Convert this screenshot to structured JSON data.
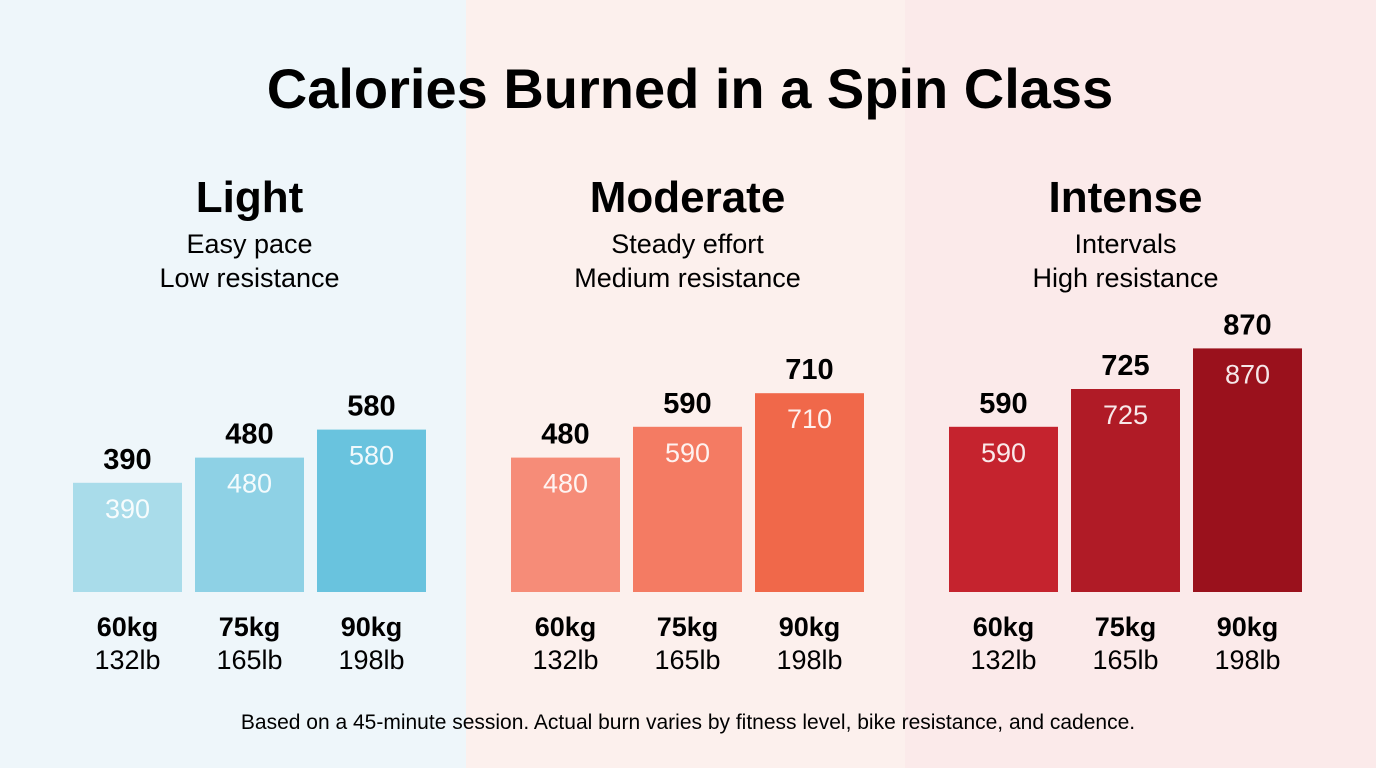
{
  "chart_data": {
    "type": "bar",
    "title": "Calories Burned in a Spin Class",
    "footnote": "Based on a 45-minute session. Actual burn varies by fitness level, bike resistance, and cadence.",
    "ylim": [
      0,
      1000
    ],
    "grid": false,
    "categories": [
      {
        "kg": "60kg",
        "lb": "132lb"
      },
      {
        "kg": "75kg",
        "lb": "165lb"
      },
      {
        "kg": "90kg",
        "lb": "198lb"
      }
    ],
    "groups": [
      {
        "name": "Light",
        "subtitle": [
          "Easy pace",
          "Low resistance"
        ],
        "values": [
          390,
          480,
          580
        ],
        "colors": [
          "#a9dcea",
          "#8ed1e5",
          "#69c3de"
        ],
        "panel": "#eef6fa"
      },
      {
        "name": "Moderate",
        "subtitle": [
          "Steady effort",
          "Medium resistance"
        ],
        "values": [
          480,
          590,
          710
        ],
        "colors": [
          "#f68c78",
          "#f47b63",
          "#f0684a"
        ],
        "panel": "#fcf0ed"
      },
      {
        "name": "Intense",
        "subtitle": [
          "Intervals",
          "High resistance"
        ],
        "values": [
          590,
          725,
          870
        ],
        "colors": [
          "#c5232e",
          "#b01b26",
          "#9a111c"
        ],
        "panel": "#fbeaea"
      }
    ]
  }
}
